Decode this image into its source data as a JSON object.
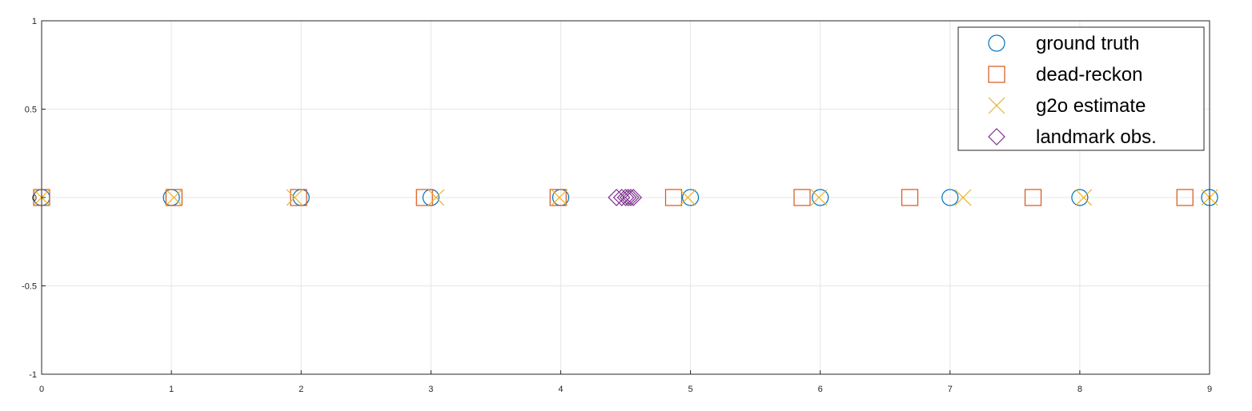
{
  "chart_data": {
    "type": "scatter",
    "title": "",
    "xlabel": "",
    "ylabel": "",
    "xlim": [
      0,
      9
    ],
    "ylim": [
      -1,
      1
    ],
    "xticks": [
      "0",
      "1",
      "2",
      "3",
      "4",
      "5",
      "6",
      "7",
      "8",
      "9"
    ],
    "yticks": [
      "-1",
      "-0.5",
      "0",
      "0.5",
      "1"
    ],
    "grid": true,
    "legend_position": "top-right",
    "series": [
      {
        "name": "ground truth",
        "marker": "circle",
        "color": "#0072BD",
        "x": [
          0,
          1,
          2,
          3,
          4,
          5,
          6,
          7,
          8,
          9
        ],
        "y": [
          0,
          0,
          0,
          0,
          0,
          0,
          0,
          0,
          0,
          0
        ]
      },
      {
        "name": "dead-reckon",
        "marker": "square",
        "color": "#D95319",
        "x": [
          0,
          1.02,
          1.98,
          2.95,
          3.98,
          4.87,
          5.86,
          6.69,
          7.64,
          8.81
        ],
        "y": [
          0,
          0,
          0,
          0,
          0,
          0,
          0,
          0,
          0,
          0
        ]
      },
      {
        "name": "g2o estimate",
        "marker": "x",
        "color": "#EDB120",
        "x": [
          0,
          1.02,
          1.95,
          3.04,
          3.99,
          4.98,
          5.99,
          7.1,
          8.03,
          9
        ],
        "y": [
          0,
          0,
          0,
          0,
          0,
          0,
          0,
          0,
          0,
          0
        ]
      },
      {
        "name": "landmark obs.",
        "marker": "diamond",
        "color": "#7E2F8E",
        "x": [
          4.43,
          4.47,
          4.5,
          4.52,
          4.54,
          4.56
        ],
        "y": [
          0,
          0,
          0,
          0,
          0,
          0
        ]
      }
    ]
  }
}
